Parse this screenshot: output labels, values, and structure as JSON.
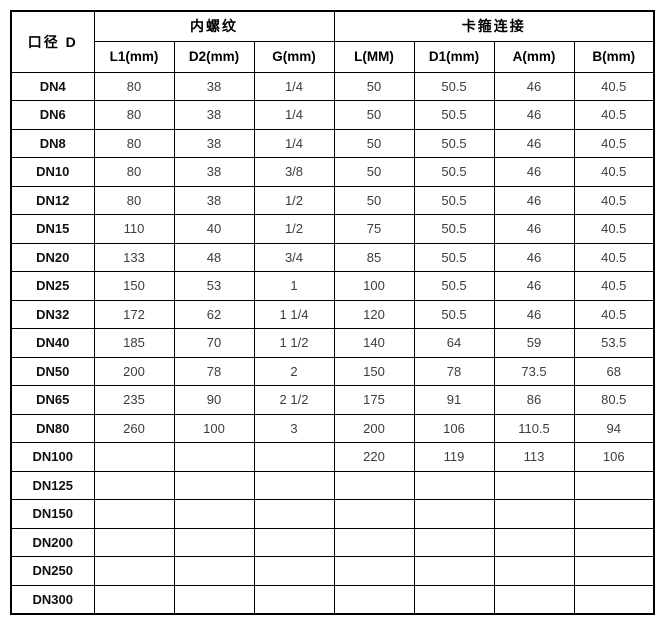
{
  "table": {
    "corner_header": "口径 D",
    "groups": [
      {
        "label": "内螺纹",
        "columns": [
          "L1(mm)",
          "D2(mm)",
          "G(mm)"
        ]
      },
      {
        "label": "卡箍连接",
        "columns": [
          "L(MM)",
          "D1(mm)",
          "A(mm)",
          "B(mm)"
        ]
      }
    ],
    "rows": [
      {
        "dn": "DN4",
        "cells": [
          "80",
          "38",
          "1/4",
          "50",
          "50.5",
          "46",
          "40.5"
        ]
      },
      {
        "dn": "DN6",
        "cells": [
          "80",
          "38",
          "1/4",
          "50",
          "50.5",
          "46",
          "40.5"
        ]
      },
      {
        "dn": "DN8",
        "cells": [
          "80",
          "38",
          "1/4",
          "50",
          "50.5",
          "46",
          "40.5"
        ]
      },
      {
        "dn": "DN10",
        "cells": [
          "80",
          "38",
          "3/8",
          "50",
          "50.5",
          "46",
          "40.5"
        ]
      },
      {
        "dn": "DN12",
        "cells": [
          "80",
          "38",
          "1/2",
          "50",
          "50.5",
          "46",
          "40.5"
        ]
      },
      {
        "dn": "DN15",
        "cells": [
          "110",
          "40",
          "1/2",
          "75",
          "50.5",
          "46",
          "40.5"
        ]
      },
      {
        "dn": "DN20",
        "cells": [
          "133",
          "48",
          "3/4",
          "85",
          "50.5",
          "46",
          "40.5"
        ]
      },
      {
        "dn": "DN25",
        "cells": [
          "150",
          "53",
          "1",
          "100",
          "50.5",
          "46",
          "40.5"
        ]
      },
      {
        "dn": "DN32",
        "cells": [
          "172",
          "62",
          "1 1/4",
          "120",
          "50.5",
          "46",
          "40.5"
        ]
      },
      {
        "dn": "DN40",
        "cells": [
          "185",
          "70",
          "1 1/2",
          "140",
          "64",
          "59",
          "53.5"
        ]
      },
      {
        "dn": "DN50",
        "cells": [
          "200",
          "78",
          "2",
          "150",
          "78",
          "73.5",
          "68"
        ]
      },
      {
        "dn": "DN65",
        "cells": [
          "235",
          "90",
          "2 1/2",
          "175",
          "91",
          "86",
          "80.5"
        ]
      },
      {
        "dn": "DN80",
        "cells": [
          "260",
          "100",
          "3",
          "200",
          "106",
          "110.5",
          "94"
        ]
      },
      {
        "dn": "DN100",
        "cells": [
          "",
          "",
          "",
          "220",
          "119",
          "113",
          "106"
        ]
      },
      {
        "dn": "DN125",
        "cells": [
          "",
          "",
          "",
          "",
          "",
          "",
          ""
        ]
      },
      {
        "dn": "DN150",
        "cells": [
          "",
          "",
          "",
          "",
          "",
          "",
          ""
        ]
      },
      {
        "dn": "DN200",
        "cells": [
          "",
          "",
          "",
          "",
          "",
          "",
          ""
        ]
      },
      {
        "dn": "DN250",
        "cells": [
          "",
          "",
          "",
          "",
          "",
          "",
          ""
        ]
      },
      {
        "dn": "DN300",
        "cells": [
          "",
          "",
          "",
          "",
          "",
          "",
          ""
        ]
      }
    ]
  },
  "colors": {
    "border": "#000000",
    "header_text": "#000000",
    "cell_text": "#3d3d3d",
    "background": "#ffffff"
  }
}
